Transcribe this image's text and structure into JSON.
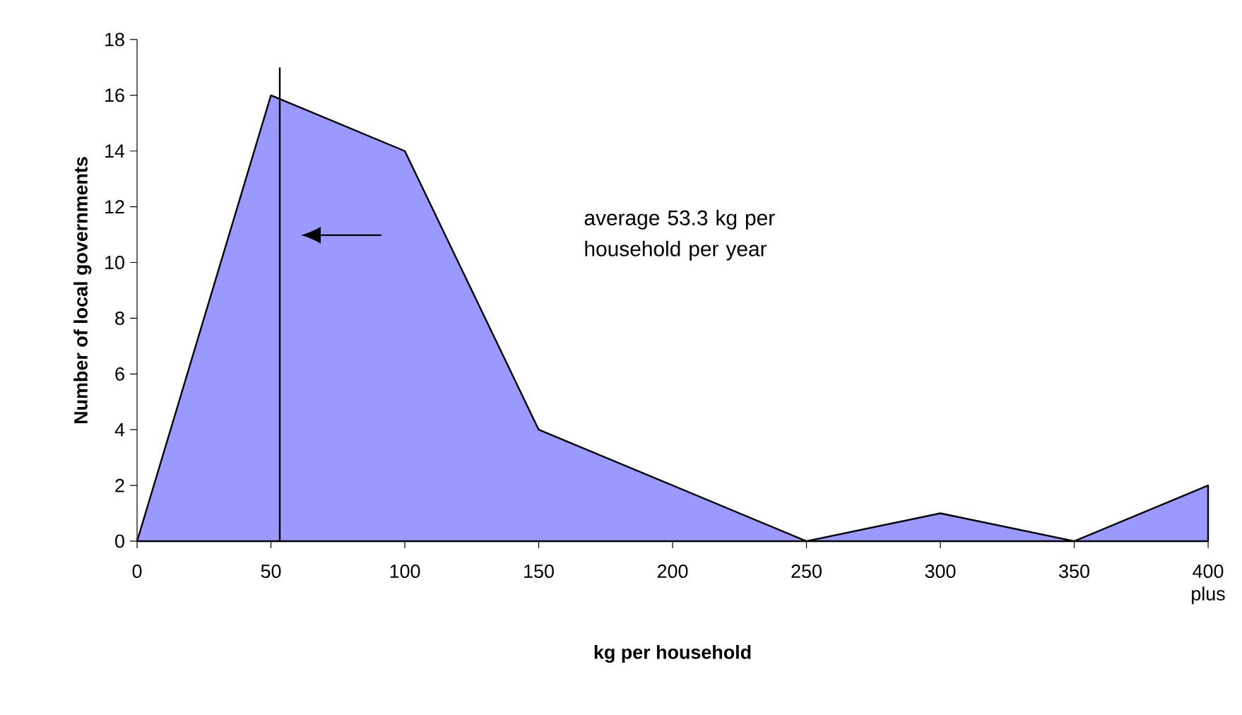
{
  "chart_data": {
    "type": "area",
    "xlabel": "kg per household",
    "ylabel": "Number of local governments",
    "x": [
      0,
      50,
      100,
      150,
      200,
      250,
      300,
      350,
      400
    ],
    "values": [
      0,
      16,
      14,
      4,
      2,
      0,
      1,
      0,
      2
    ],
    "color": "#9999ff",
    "xlim": [
      0,
      400
    ],
    "ylim": [
      0,
      18
    ],
    "xticks": [
      0,
      50,
      100,
      150,
      200,
      250,
      300,
      350,
      {
        "value": 400,
        "label": "400 plus"
      }
    ],
    "yticks": [
      0,
      2,
      4,
      6,
      8,
      10,
      12,
      14,
      16,
      18
    ],
    "ref_lines": [
      {
        "axis": "x",
        "value": 53.3,
        "color": "#000000"
      }
    ],
    "annotations": [
      "average 53.3 kg per household per year"
    ],
    "relative": false
  }
}
